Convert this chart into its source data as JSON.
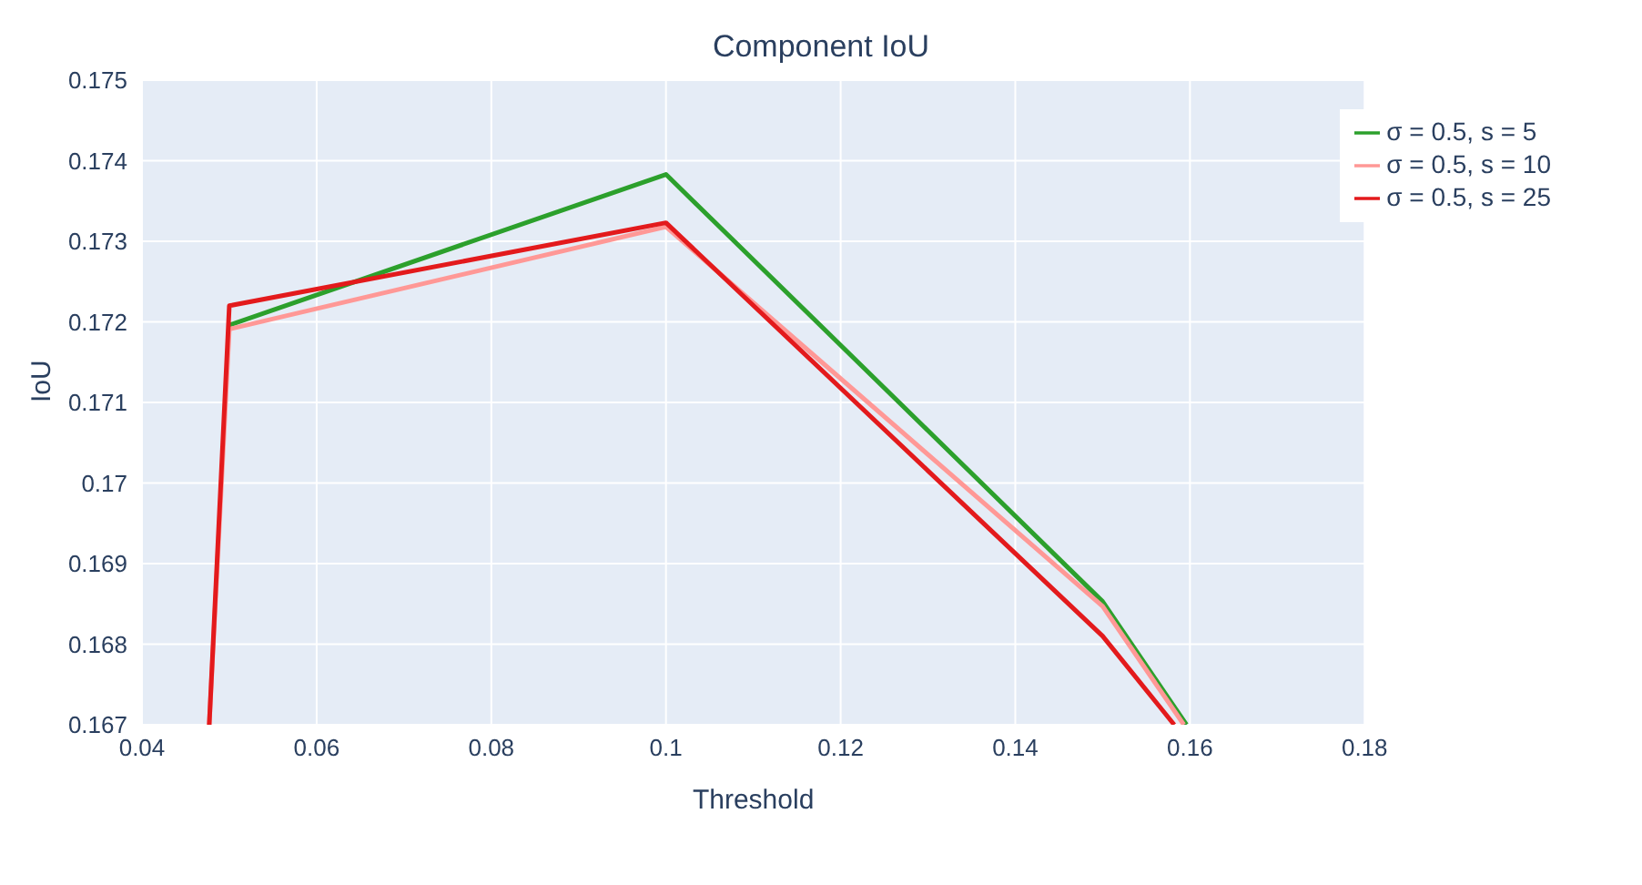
{
  "chart_data": {
    "type": "line",
    "title": "Component IoU",
    "xlabel": "Threshold",
    "ylabel": "IoU",
    "xlim": [
      0.04,
      0.18
    ],
    "xticks": [
      0.04,
      0.06,
      0.08,
      0.1,
      0.12,
      0.14,
      0.16,
      0.18
    ],
    "ylim": [
      0.167,
      0.175
    ],
    "yticks": [
      0.167,
      0.168,
      0.169,
      0.17,
      0.171,
      0.172,
      0.173,
      0.174,
      0.175
    ],
    "grid": true,
    "legend": "top right",
    "marker": "none",
    "line_style": "solid",
    "series": [
      {
        "name": "σ = 0.5, s = 5",
        "color": "#2ca02c",
        "x": [
          0.05,
          0.1,
          0.15,
          0.1596
        ],
        "values": [
          0.17196,
          0.17383,
          0.16853,
          0.167
        ]
      },
      {
        "name": "σ = 0.5, s = 10",
        "color": "#ff9896",
        "x": [
          0.0477,
          0.05,
          0.1,
          0.15,
          0.1593
        ],
        "values": [
          0.167,
          0.17191,
          0.17318,
          0.16847,
          0.167
        ]
      },
      {
        "name": "σ = 0.5, s = 25",
        "color": "#e31a1c",
        "x": [
          0.0477,
          0.05,
          0.1,
          0.15,
          0.1582
        ],
        "values": [
          0.167,
          0.1722,
          0.17323,
          0.1681,
          0.167
        ]
      }
    ]
  }
}
